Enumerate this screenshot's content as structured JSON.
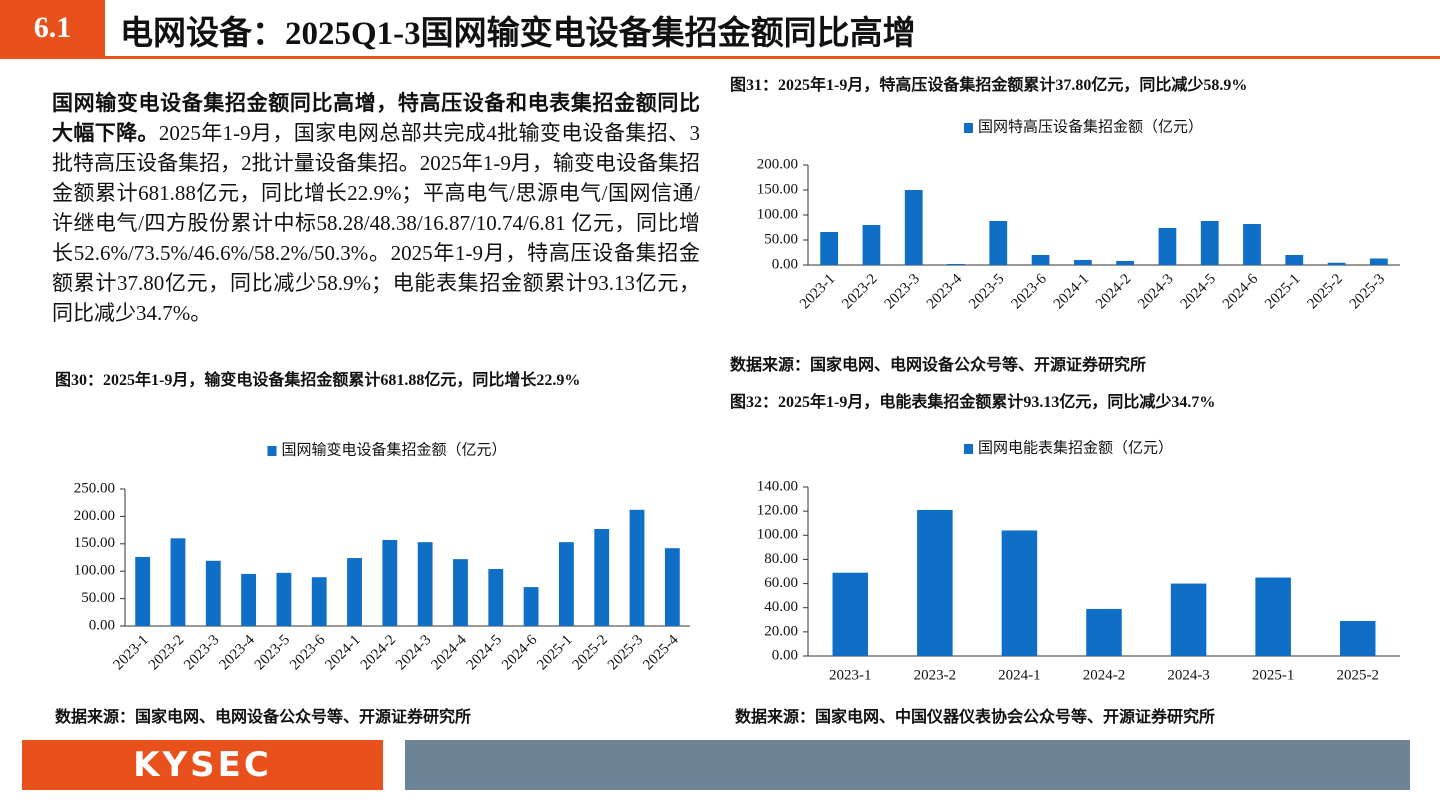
{
  "header": {
    "number": "6.1",
    "title": "电网设备：2025Q1-3国网输变电设备集招金额同比高增"
  },
  "body": {
    "lead": "国网输变电设备集招金额同比高增，特高压设备和电表集招金额同比大幅下降。",
    "text": "2025年1-9月，国家电网总部共完成4批输变电设备集招、3批特高压设备集招，2批计量设备集招。2025年1-9月，输变电设备集招金额累计681.88亿元，同比增长22.9%；平高电气/思源电气/国网信通/许继电气/四方股份累计中标58.28/48.38/16.87/10.74/6.81 亿元，同比增长52.6%/73.5%/46.6%/58.2%/50.3%。2025年1-9月，特高压设备集招金额累计37.80亿元，同比减少58.9%；电能表集招金额累计93.13亿元，同比减少34.7%。"
  },
  "chart_data": [
    {
      "type": "bar",
      "title": "图30：2025年1-9月，输变电设备集招金额累计681.88亿元，同比增长22.9%",
      "source": "数据来源：国家电网、电网设备公众号等、开源证券研究所",
      "categories": [
        "2023-1",
        "2023-2",
        "2023-3",
        "2023-4",
        "2023-5",
        "2023-6",
        "2024-1",
        "2024-2",
        "2024-3",
        "2024-4",
        "2024-5",
        "2024-6",
        "2025-1",
        "2025-2",
        "2025-3",
        "2025-4"
      ],
      "series": [
        {
          "name": "国网输变电设备集招金额（亿元）",
          "color": "#0f6fc6",
          "values": [
            126,
            160,
            119,
            95,
            97,
            89,
            124,
            157,
            153,
            122,
            104,
            71,
            153,
            177,
            212,
            142
          ]
        }
      ],
      "ylim": [
        0,
        250
      ],
      "yticks": [
        {
          "value": 0,
          "label": "0.00"
        },
        {
          "value": 50,
          "label": "50.00"
        },
        {
          "value": 100,
          "label": "100.00"
        },
        {
          "value": 150,
          "label": "150.00"
        },
        {
          "value": 200,
          "label": "200.00"
        },
        {
          "value": 250,
          "label": "250.00"
        }
      ],
      "label_rotation": -45
    },
    {
      "type": "bar",
      "title": "图31：2025年1-9月，特高压设备集招金额累计37.80亿元，同比减少58.9%",
      "source": "数据来源：国家电网、电网设备公众号等、开源证券研究所",
      "categories": [
        "2023-1",
        "2023-2",
        "2023-3",
        "2023-4",
        "2023-5",
        "2023-6",
        "2024-1",
        "2024-2",
        "2024-3",
        "2024-5",
        "2024-6",
        "2025-1",
        "2025-2",
        "2025-3"
      ],
      "series": [
        {
          "name": "国网特高压设备集招金额（亿元）",
          "color": "#0f6fc6",
          "values": [
            66,
            80,
            150,
            2,
            88,
            20,
            10,
            8,
            74,
            88,
            82,
            20,
            4.5,
            13
          ]
        }
      ],
      "ylim": [
        0,
        200
      ],
      "yticks": [
        {
          "value": 0,
          "label": "0.00"
        },
        {
          "value": 50,
          "label": "50.00"
        },
        {
          "value": 100,
          "label": "100.00"
        },
        {
          "value": 150,
          "label": "150.00"
        },
        {
          "value": 200,
          "label": "200.00"
        }
      ],
      "label_rotation": -45
    },
    {
      "type": "bar",
      "title": "图32：2025年1-9月，电能表集招金额累计93.13亿元，同比减少34.7%",
      "source": "数据来源：国家电网、中国仪器仪表协会公众号等、开源证券研究所",
      "categories": [
        "2023-1",
        "2023-2",
        "2024-1",
        "2024-2",
        "2024-3",
        "2025-1",
        "2025-2"
      ],
      "series": [
        {
          "name": "国网电能表集招金额（亿元）",
          "color": "#0f6fc6",
          "values": [
            69,
            121,
            104,
            39,
            60,
            65,
            29
          ]
        }
      ],
      "ylim": [
        0,
        140
      ],
      "yticks": [
        {
          "value": 0,
          "label": "0.00"
        },
        {
          "value": 20,
          "label": "20.00"
        },
        {
          "value": 40,
          "label": "40.00"
        },
        {
          "value": 60,
          "label": "60.00"
        },
        {
          "value": 80,
          "label": "80.00"
        },
        {
          "value": 100,
          "label": "100.00"
        },
        {
          "value": 120,
          "label": "120.00"
        },
        {
          "value": 140,
          "label": "140.00"
        }
      ],
      "label_rotation": 0
    }
  ],
  "footer": {
    "logo": "KYSEC"
  }
}
